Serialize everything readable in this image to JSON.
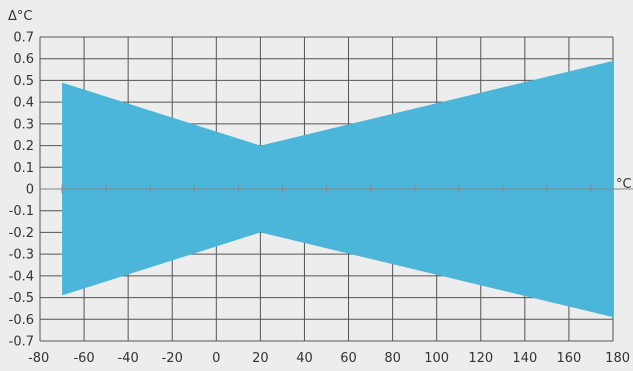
{
  "chart_data": {
    "type": "area",
    "xlabel": "°C",
    "ylabel": "Δ°C",
    "xlim": [
      -80,
      180
    ],
    "ylim": [
      -0.7,
      0.7
    ],
    "x_ticks": [
      -80,
      -60,
      -40,
      -20,
      0,
      20,
      40,
      60,
      80,
      100,
      120,
      140,
      160,
      180
    ],
    "x_minor_ticks": [
      -70,
      -50,
      -30,
      -10,
      10,
      30,
      50,
      70,
      90,
      110,
      130,
      150,
      170
    ],
    "y_ticks": [
      0.7,
      0.6,
      0.5,
      0.4,
      0.3,
      0.2,
      0.1,
      0,
      -0.1,
      -0.2,
      -0.3,
      -0.4,
      -0.5,
      -0.6,
      -0.7
    ],
    "x_tick_labels": [
      "-80",
      "-60",
      "-40",
      "-20",
      "0",
      "20",
      "40",
      "60",
      "80",
      "100",
      "120",
      "140",
      "160",
      "180"
    ],
    "y_tick_labels": [
      "0.7",
      "0.6",
      "0.5",
      "0.4",
      "0.3",
      "0.2",
      "0.1",
      "0",
      "-0.1",
      "-0.2",
      "-0.3",
      "-0.4",
      "-0.5",
      "-0.6",
      "-0.7"
    ],
    "grid": true,
    "series": [
      {
        "x": [
          -70,
          20,
          180
        ],
        "upper": [
          0.49,
          0.2,
          0.59
        ],
        "lower": [
          -0.49,
          -0.2,
          -0.59
        ],
        "color": "#4bb6da"
      }
    ],
    "colors": {
      "fill": "#4bb6da",
      "grid": "#555555",
      "background": "#ededed",
      "zero_axis": "#888888"
    }
  }
}
